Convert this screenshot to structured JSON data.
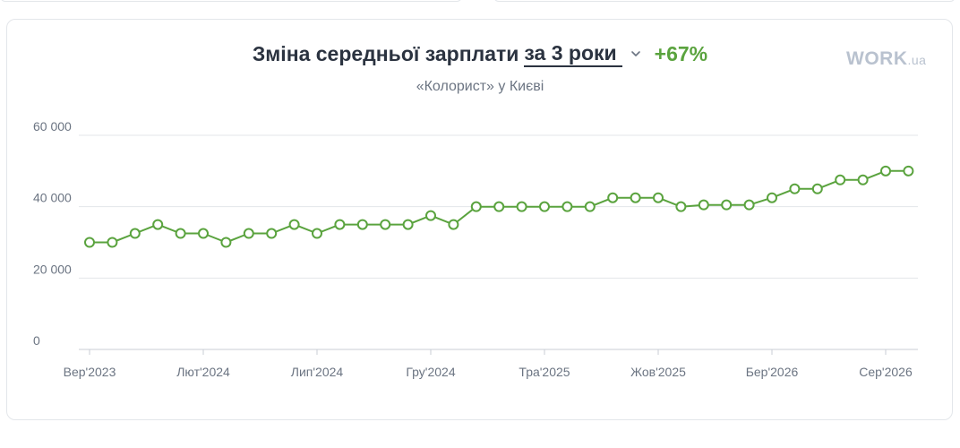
{
  "header": {
    "title": "Зміна середньої зарплати",
    "period_selected": "за 3 роки",
    "change": "+67%",
    "subtitle": "«Колорист» у Києві",
    "logo_main": "WORK",
    "logo_suffix": ".ua"
  },
  "icons": {
    "period_dropdown": "chevron-down-icon"
  },
  "colors": {
    "accent": "#5aa33e",
    "title": "#2b3340",
    "grid": "#e3e6ea",
    "logo": "#b9c2cf"
  },
  "chart_data": {
    "type": "line",
    "title": "Зміна середньої зарплати за 3 роки",
    "xlabel": "",
    "ylabel": "",
    "ylim": [
      0,
      60000
    ],
    "y_ticks": [
      {
        "value": 0,
        "label": "0"
      },
      {
        "value": 20000,
        "label": "20 000"
      },
      {
        "value": 40000,
        "label": "40 000"
      },
      {
        "value": 60000,
        "label": "60 000"
      }
    ],
    "x_ticks": [
      {
        "index": 0,
        "label": "Вер'2023"
      },
      {
        "index": 5,
        "label": "Лют'2024"
      },
      {
        "index": 10,
        "label": "Лип'2024"
      },
      {
        "index": 15,
        "label": "Гру'2024"
      },
      {
        "index": 20,
        "label": "Тра'2025"
      },
      {
        "index": 25,
        "label": "Жов'2025"
      },
      {
        "index": 30,
        "label": "Бер'2026"
      },
      {
        "index": 35,
        "label": "Сер'2026"
      }
    ],
    "grid": true,
    "legend": "none",
    "series": [
      {
        "values": [
          30000,
          30000,
          32500,
          35000,
          32500,
          32500,
          30000,
          32500,
          32500,
          35000,
          32500,
          35000,
          35000,
          35000,
          35000,
          37500,
          35000,
          40000,
          40000,
          40000,
          40000,
          40000,
          40000,
          42500,
          42500,
          42500,
          40000,
          40500,
          40500,
          40500,
          42500,
          45000,
          45000,
          47500,
          47500,
          50000,
          50000
        ]
      }
    ]
  }
}
